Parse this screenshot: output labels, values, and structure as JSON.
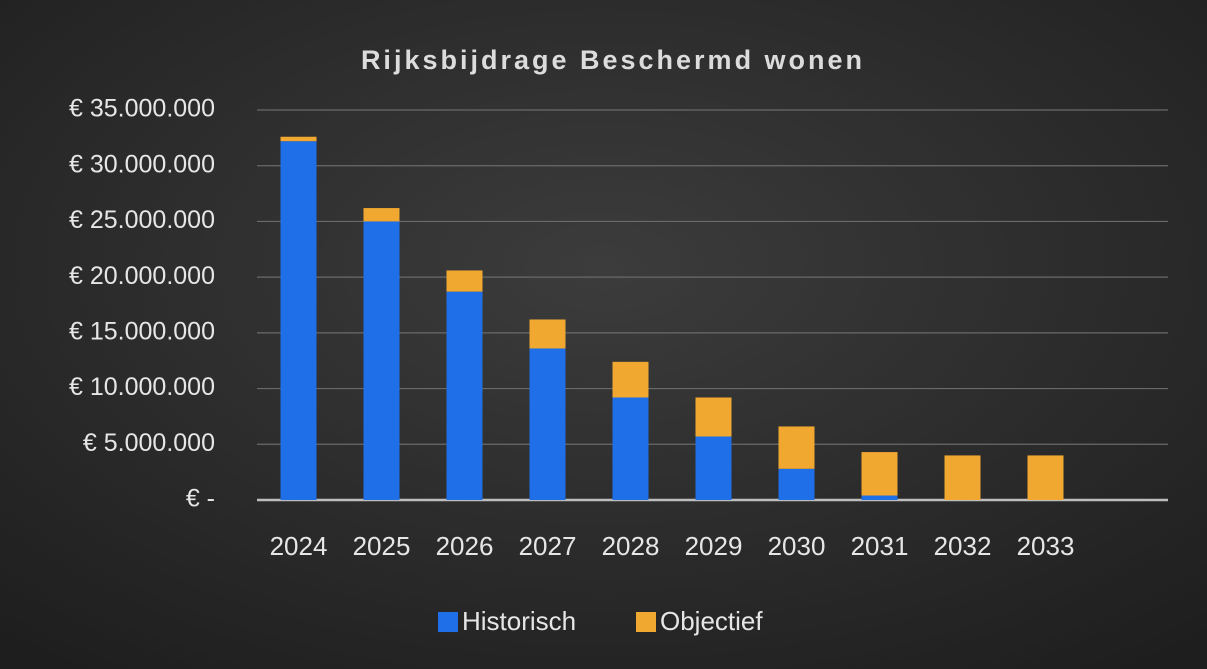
{
  "chart_data": {
    "type": "stacked_bar",
    "title": "Rijksbijdrage Beschermd wonen",
    "categories": [
      "2024",
      "2025",
      "2026",
      "2027",
      "2028",
      "2029",
      "2030",
      "2031",
      "2032",
      "2033"
    ],
    "series": [
      {
        "name": "Historisch",
        "color": "#1f6fe8",
        "values": [
          32200000,
          25000000,
          18700000,
          13600000,
          9200000,
          5700000,
          2800000,
          400000,
          0,
          0
        ]
      },
      {
        "name": "Objectief",
        "color": "#f0a830",
        "values": [
          400000,
          1200000,
          1900000,
          2600000,
          3200000,
          3500000,
          3800000,
          3900000,
          4000000,
          4000000
        ]
      }
    ],
    "ylim": [
      0,
      35000000
    ],
    "yticks": [
      {
        "value": 0,
        "label": "€ -"
      },
      {
        "value": 5000000,
        "label": "€ 5.000.000"
      },
      {
        "value": 10000000,
        "label": "€ 10.000.000"
      },
      {
        "value": 15000000,
        "label": "€ 15.000.000"
      },
      {
        "value": 20000000,
        "label": "€ 20.000.000"
      },
      {
        "value": 25000000,
        "label": "€ 25.000.000"
      },
      {
        "value": 30000000,
        "label": "€ 30.000.000"
      },
      {
        "value": 35000000,
        "label": "€ 35.000.000"
      }
    ],
    "grid": true,
    "legend": "bottom"
  }
}
